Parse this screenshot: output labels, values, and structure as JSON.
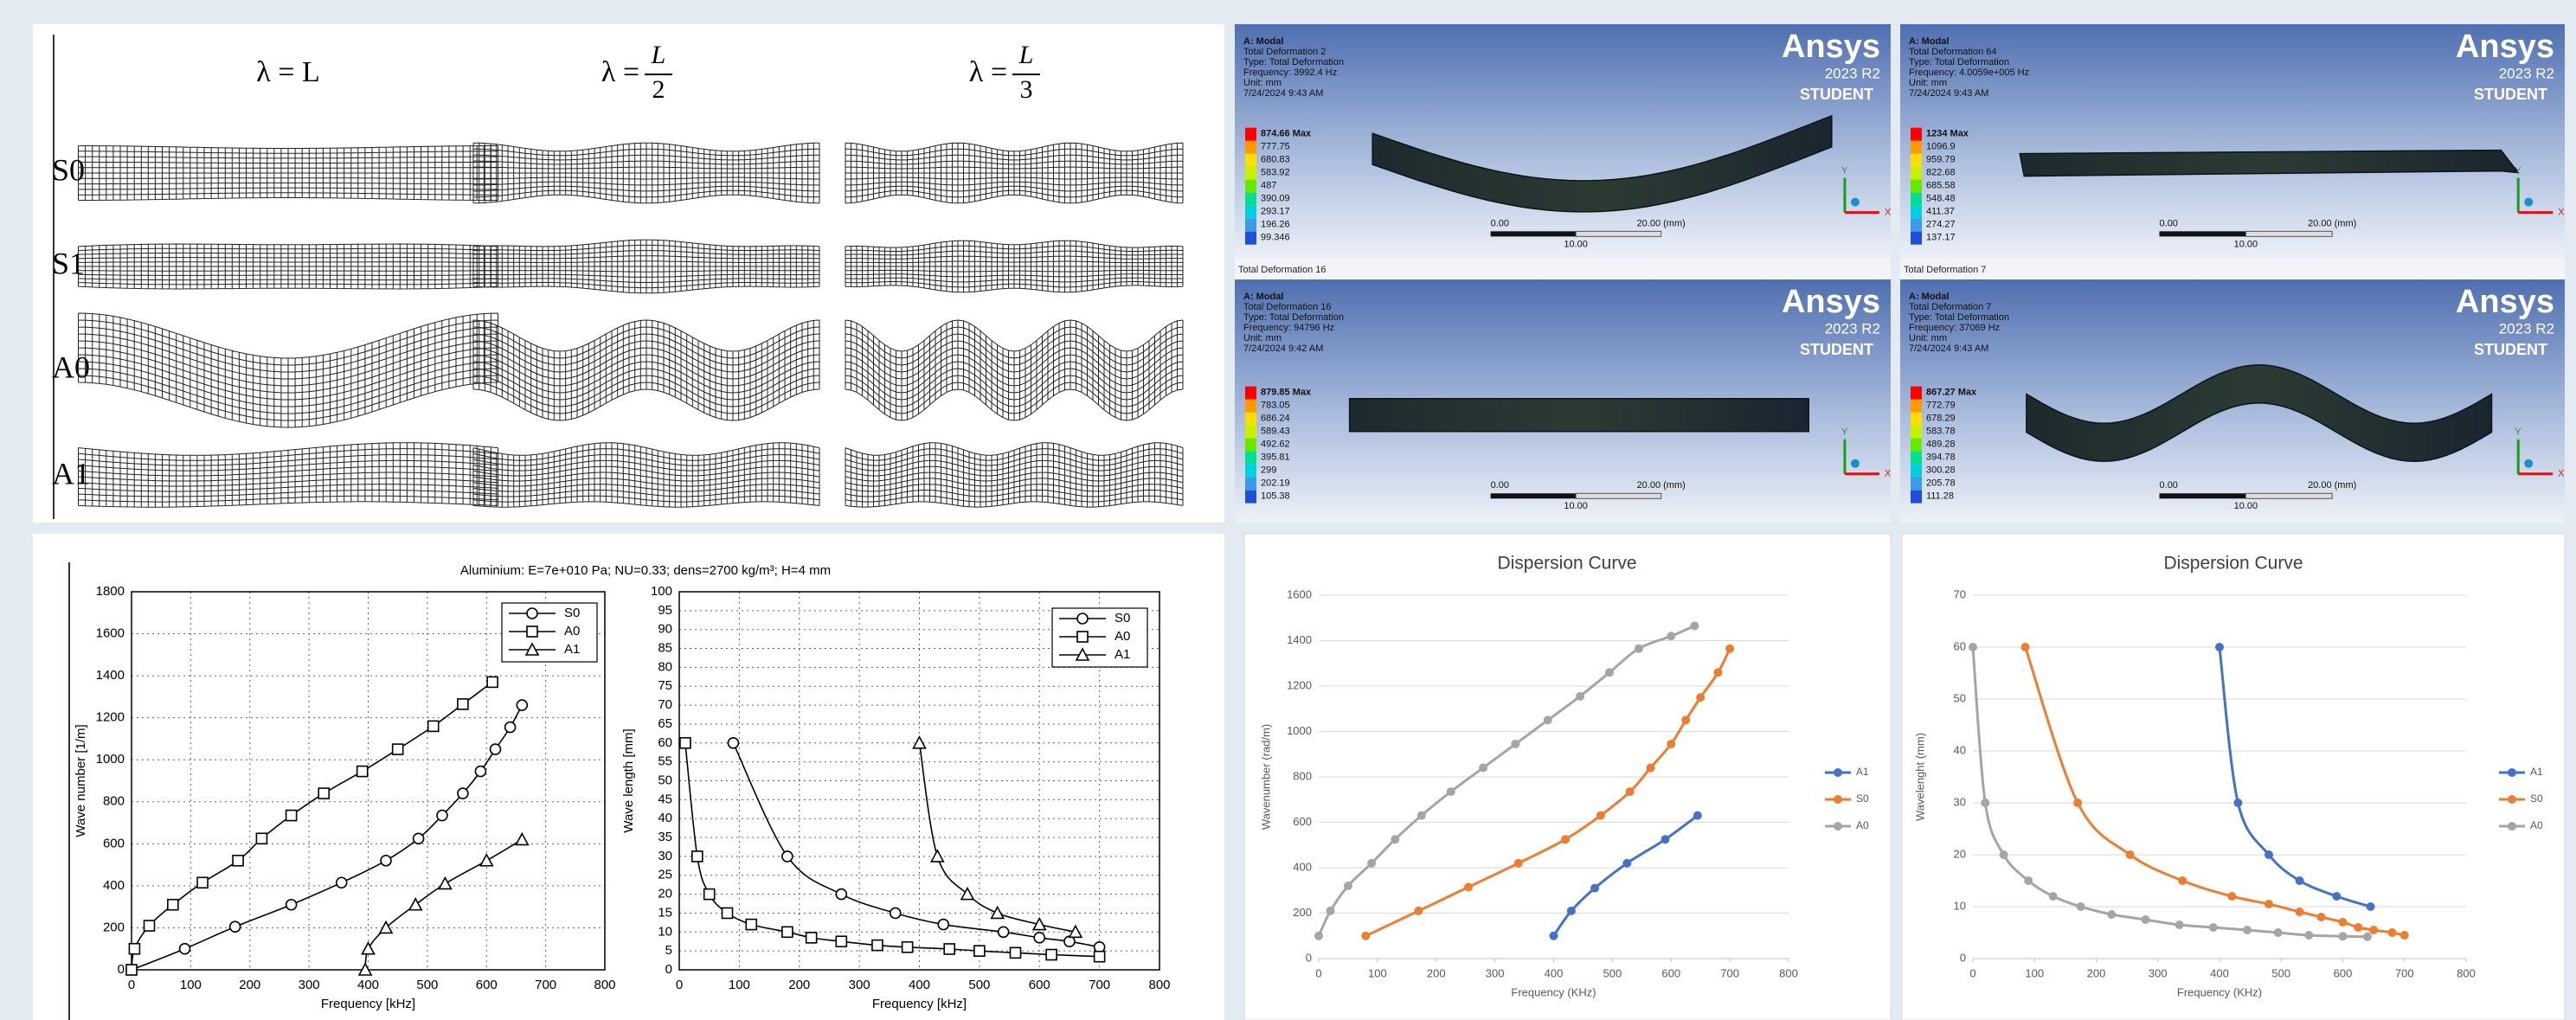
{
  "figure": {
    "mesh": {
      "columns": [
        {
          "label": "λ = L"
        },
        {
          "label": "λ =",
          "numerator": "L",
          "denominator": "2"
        },
        {
          "label": "λ =",
          "numerator": "L",
          "denominator": "3"
        }
      ],
      "rows": [
        "S0",
        "S1",
        "A0",
        "A1"
      ]
    },
    "ansys": {
      "logo": {
        "brand": "Ansys",
        "version": "2023 R2",
        "edition": "STUDENT"
      },
      "scale": {
        "start": "0.00",
        "mid": "10.00",
        "end": "20.00 (mm)"
      },
      "triad": {
        "x": "X",
        "y": "Y"
      },
      "panels": [
        {
          "lines": [
            "A: Modal",
            "Total Deformation 2",
            "Type: Total Deformation",
            "Frequency: 3992.4 Hz",
            "Unit: mm",
            "7/24/2024 9:43 AM"
          ],
          "legend": [
            "874.66 Max",
            "777.75",
            "680.83",
            "583.92",
            "487",
            "390.09",
            "293.17",
            "196.26",
            "99.346"
          ]
        },
        {
          "lines": [
            "A: Modal",
            "Total Deformation 64",
            "Type: Total Deformation",
            "Frequency: 4.0059e+005 Hz",
            "Unit: mm",
            "7/24/2024 9:43 AM"
          ],
          "legend": [
            "1234 Max",
            "1096.9",
            "959.79",
            "822.68",
            "685.58",
            "548.48",
            "411.37",
            "274.27",
            "137.17"
          ]
        },
        {
          "header": "Total Deformation 16",
          "lines": [
            "A: Modal",
            "Total Deformation 16",
            "Type: Total Deformation",
            "Frequency: 94796 Hz",
            "Unit: mm",
            "7/24/2024 9:42 AM"
          ],
          "legend": [
            "879.85 Max",
            "783.05",
            "686.24",
            "589.43",
            "492.62",
            "395.81",
            "299",
            "202.19",
            "105.38"
          ]
        },
        {
          "header": "Total Deformation 7",
          "lines": [
            "A: Modal",
            "Total Deformation 7",
            "Type: Total Deformation",
            "Frequency: 37069 Hz",
            "Unit: mm",
            "7/24/2024 9:43 AM"
          ],
          "legend": [
            "867.27 Max",
            "772.79",
            "678.29",
            "583.78",
            "489.28",
            "394.78",
            "300.28",
            "205.78",
            "111.28"
          ]
        }
      ]
    }
  },
  "chart_data": [
    {
      "type": "line",
      "title": "Aluminium: E=7e+010 Pa; NU=0.33; dens=2700 kg/m³; H=4 mm",
      "x_label": "Frequency [kHz]",
      "y_label": "Wave number [1/m]",
      "xlim": [
        0,
        800
      ],
      "ylim": [
        0,
        1800
      ],
      "xticks": [
        0,
        100,
        200,
        300,
        400,
        500,
        600,
        700,
        800
      ],
      "yticks": [
        0,
        200,
        400,
        600,
        800,
        1000,
        1200,
        1400,
        1600,
        1800
      ],
      "grid": true,
      "legend": "upper right",
      "series": [
        {
          "name": "S0",
          "color": "#000000",
          "marker": "circle",
          "x": [
            0,
            90,
            175,
            270,
            355,
            430,
            485,
            525,
            560,
            590,
            615,
            640,
            660
          ],
          "values": [
            0,
            100,
            205,
            310,
            415,
            520,
            625,
            735,
            840,
            945,
            1050,
            1155,
            1260
          ]
        },
        {
          "name": "A0",
          "color": "#000000",
          "marker": "square",
          "x": [
            0,
            5,
            30,
            70,
            120,
            180,
            220,
            270,
            325,
            390,
            450,
            510,
            560,
            610
          ],
          "values": [
            0,
            100,
            210,
            310,
            415,
            520,
            625,
            735,
            840,
            945,
            1050,
            1160,
            1265,
            1370
          ]
        },
        {
          "name": "A1",
          "color": "#000000",
          "marker": "triangle",
          "x": [
            395,
            400,
            430,
            480,
            530,
            600,
            660
          ],
          "values": [
            0,
            100,
            200,
            310,
            410,
            520,
            620
          ]
        }
      ]
    },
    {
      "type": "line",
      "x_label": "Frequency [kHz]",
      "y_label": "Wave length [mm]",
      "xlim": [
        0,
        800
      ],
      "ylim": [
        0,
        100
      ],
      "xticks": [
        0,
        100,
        200,
        300,
        400,
        500,
        600,
        700,
        800
      ],
      "yticks": [
        0,
        5,
        10,
        15,
        20,
        25,
        30,
        35,
        40,
        45,
        50,
        55,
        60,
        65,
        70,
        75,
        80,
        85,
        90,
        95,
        100
      ],
      "grid": true,
      "legend": "upper right",
      "series": [
        {
          "name": "S0",
          "color": "#000000",
          "marker": "circle",
          "x": [
            90,
            180,
            270,
            360,
            440,
            540,
            600,
            650,
            700
          ],
          "values": [
            60,
            30,
            20,
            15,
            12,
            10,
            8.5,
            7.5,
            6
          ]
        },
        {
          "name": "A0",
          "color": "#000000",
          "marker": "square",
          "x": [
            10,
            30,
            50,
            80,
            120,
            180,
            220,
            270,
            330,
            380,
            450,
            500,
            560,
            620,
            700
          ],
          "values": [
            60,
            30,
            20,
            15,
            12,
            10,
            8.5,
            7.5,
            6.5,
            6,
            5.5,
            5,
            4.5,
            4,
            3.5
          ]
        },
        {
          "name": "A1",
          "color": "#000000",
          "marker": "triangle",
          "x": [
            400,
            430,
            480,
            530,
            600,
            660
          ],
          "values": [
            60,
            30,
            20,
            15,
            12,
            10
          ]
        }
      ]
    },
    {
      "type": "line",
      "title": "Dispersion Curve",
      "x_label": "Frequency (KHz)",
      "y_label": "Wavenumber (rad/m)",
      "xlim": [
        0,
        800
      ],
      "ylim": [
        0,
        1600
      ],
      "xticks": [
        0,
        100,
        200,
        300,
        400,
        500,
        600,
        700,
        800
      ],
      "yticks": [
        0,
        200,
        400,
        600,
        800,
        1000,
        1200,
        1400,
        1600
      ],
      "grid": true,
      "legend": "right",
      "series": [
        {
          "name": "A1",
          "color": "#4472c4",
          "marker": "circle",
          "x": [
            400,
            430,
            470,
            525,
            590,
            645
          ],
          "values": [
            100,
            210,
            310,
            420,
            525,
            630
          ]
        },
        {
          "name": "S0",
          "color": "#ed7d31",
          "marker": "circle",
          "x": [
            80,
            170,
            255,
            340,
            420,
            480,
            530,
            565,
            600,
            625,
            650,
            680,
            700
          ],
          "values": [
            100,
            210,
            315,
            420,
            525,
            630,
            735,
            840,
            945,
            1050,
            1150,
            1260,
            1365
          ]
        },
        {
          "name": "A0",
          "color": "#a5a5a5",
          "marker": "circle",
          "x": [
            0,
            20,
            50,
            90,
            130,
            175,
            225,
            280,
            335,
            390,
            445,
            495,
            545,
            600,
            640
          ],
          "values": [
            100,
            210,
            320,
            420,
            525,
            630,
            735,
            840,
            945,
            1050,
            1155,
            1260,
            1365,
            1420,
            1465
          ]
        }
      ]
    },
    {
      "type": "line",
      "title": "Dispersion Curve",
      "x_label": "Frequency (KHz)",
      "y_label": "Wavelenght (mm)",
      "xlim": [
        0,
        800
      ],
      "ylim": [
        0,
        70
      ],
      "xticks": [
        0,
        100,
        200,
        300,
        400,
        500,
        600,
        700,
        800
      ],
      "yticks": [
        0,
        10,
        20,
        30,
        40,
        50,
        60,
        70
      ],
      "grid": true,
      "legend": "right",
      "series": [
        {
          "name": "A1",
          "color": "#4472c4",
          "marker": "circle",
          "x": [
            400,
            430,
            480,
            530,
            590,
            645
          ],
          "values": [
            60,
            30,
            20,
            15,
            12,
            10
          ]
        },
        {
          "name": "S0",
          "color": "#ed7d31",
          "marker": "circle",
          "x": [
            85,
            170,
            255,
            340,
            420,
            480,
            530,
            565,
            600,
            625,
            650,
            680,
            700
          ],
          "values": [
            60,
            30,
            20,
            15,
            12,
            10.5,
            9,
            8,
            7,
            6,
            5.5,
            5,
            4.5
          ]
        },
        {
          "name": "A0",
          "color": "#a5a5a5",
          "marker": "circle",
          "x": [
            0,
            20,
            50,
            90,
            130,
            175,
            225,
            280,
            335,
            390,
            445,
            495,
            545,
            600,
            640
          ],
          "values": [
            60,
            30,
            20,
            15,
            12,
            10,
            8.5,
            7.5,
            6.5,
            6,
            5.5,
            5,
            4.5,
            4.3,
            4.2
          ]
        }
      ]
    }
  ]
}
